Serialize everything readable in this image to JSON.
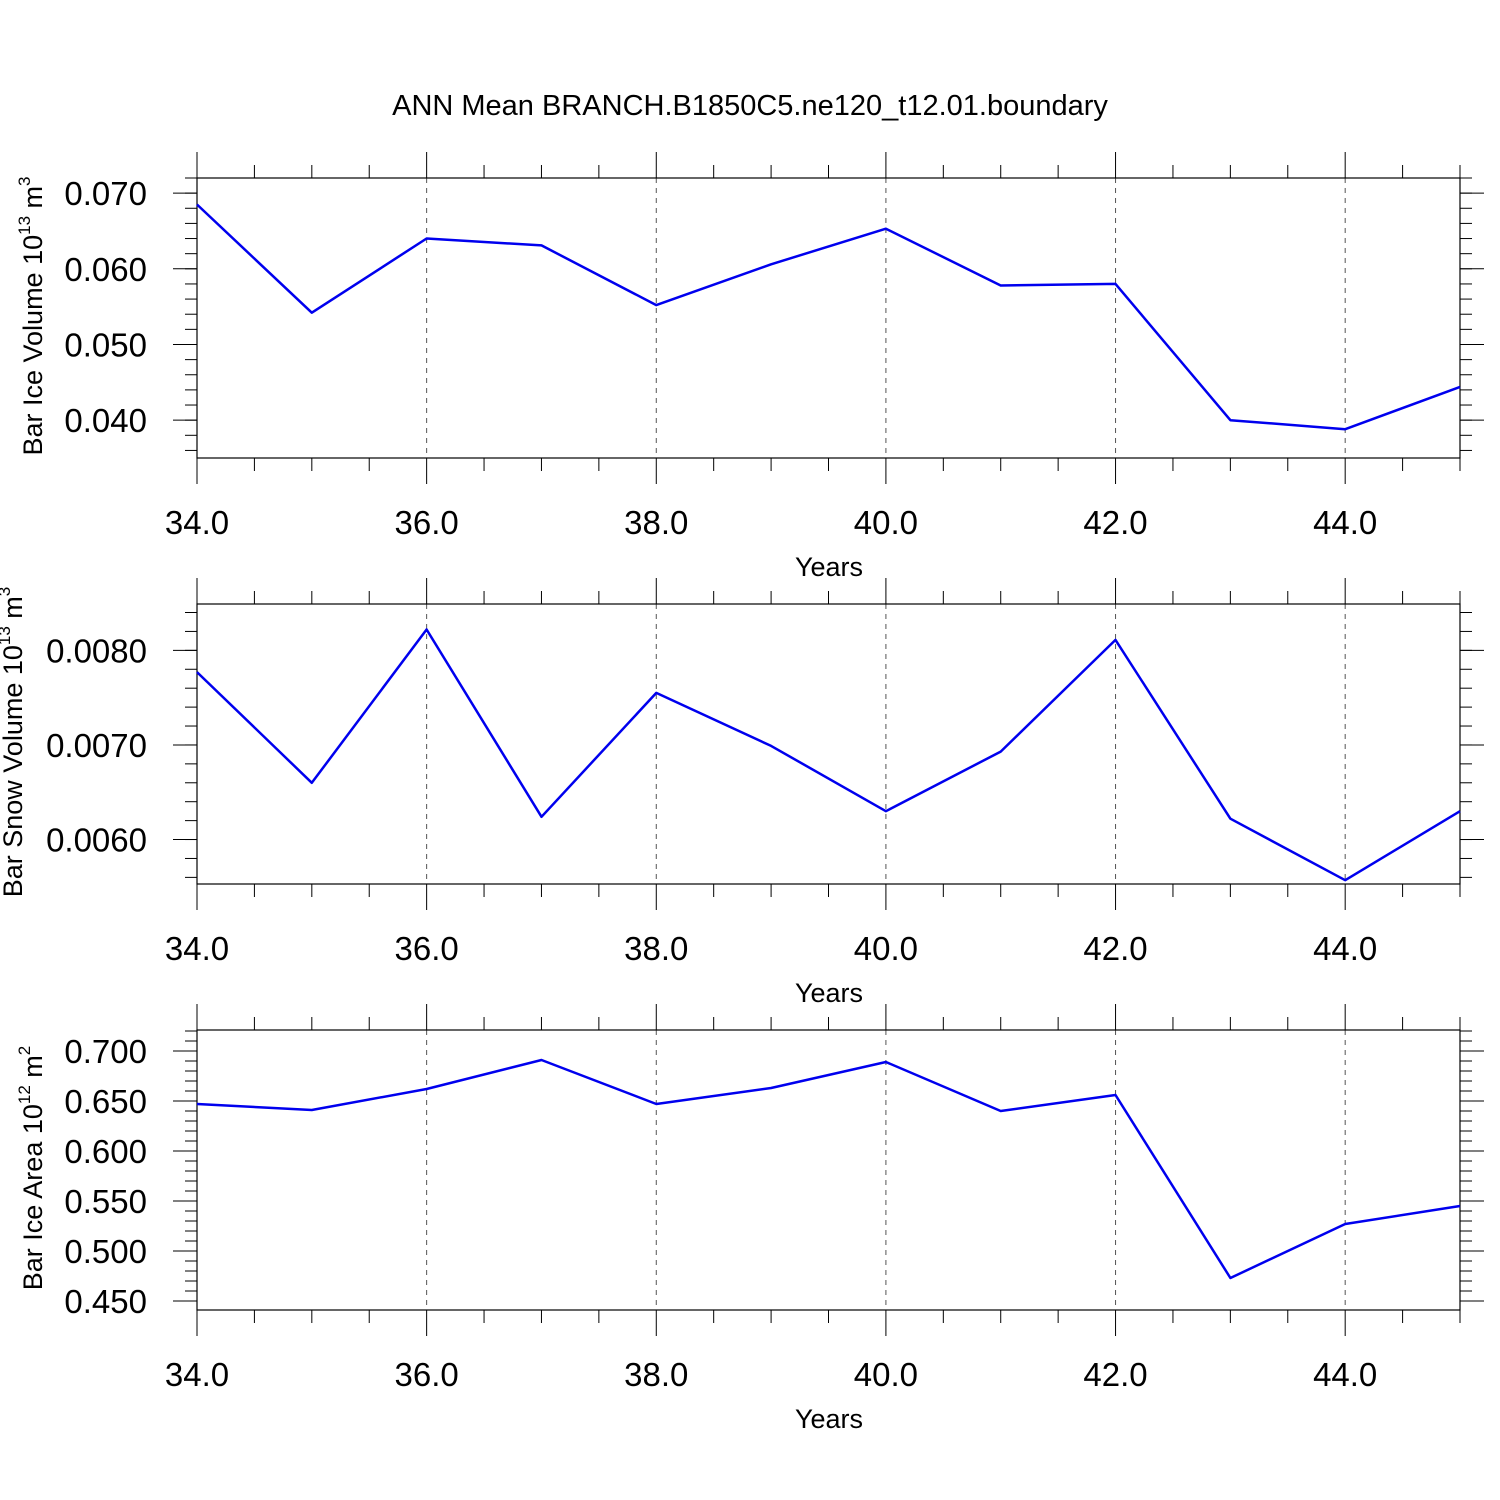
{
  "figure": {
    "title": "ANN Mean BRANCH.B1850C5.ne120_t12.01.boundary"
  },
  "colors": {
    "line": "#0000ee",
    "axis": "#000000",
    "grid": "#555555"
  },
  "chart_data": [
    {
      "type": "line",
      "ylabel": {
        "text": "Bar Ice Volume 10",
        "sup": "13",
        "unit": " m",
        "unitsup": "3"
      },
      "xlabel": "Years",
      "xlim": [
        34,
        45
      ],
      "ylim": [
        0.035,
        0.072
      ],
      "xticks": [
        34,
        36,
        38,
        40,
        42,
        44
      ],
      "xtick_labels": [
        "34.0",
        "36.0",
        "38.0",
        "40.0",
        "42.0",
        "44.0"
      ],
      "yticks": [
        0.04,
        0.05,
        0.06,
        0.07
      ],
      "ytick_labels": [
        "0.040",
        "0.050",
        "0.060",
        "0.070"
      ],
      "y_minor_step": 0.002,
      "grid": "vertical-dashed",
      "x": [
        34,
        35,
        36,
        37,
        38,
        39,
        40,
        41,
        42,
        43,
        44,
        45
      ],
      "series": [
        {
          "values": [
            0.0685,
            0.0542,
            0.064,
            0.0631,
            0.0552,
            0.0606,
            0.0653,
            0.0578,
            0.058,
            0.04,
            0.0388,
            0.0444
          ]
        }
      ]
    },
    {
      "type": "line",
      "ylabel": {
        "text": "Bar Snow Volume 10",
        "sup": "13",
        "unit": " m",
        "unitsup": "3"
      },
      "xlabel": "Years",
      "xlim": [
        34,
        45
      ],
      "ylim": [
        0.00553,
        0.00849
      ],
      "xticks": [
        34,
        36,
        38,
        40,
        42,
        44
      ],
      "xtick_labels": [
        "34.0",
        "36.0",
        "38.0",
        "40.0",
        "42.0",
        "44.0"
      ],
      "yticks": [
        0.006,
        0.007,
        0.008
      ],
      "ytick_labels": [
        "0.0060",
        "0.0070",
        "0.0080"
      ],
      "y_minor_step": 0.0002,
      "grid": "vertical-dashed",
      "x": [
        34,
        35,
        36,
        37,
        38,
        39,
        40,
        41,
        42,
        43,
        44,
        45
      ],
      "series": [
        {
          "values": [
            0.00777,
            0.0066,
            0.00822,
            0.00624,
            0.00755,
            0.00699,
            0.0063,
            0.00693,
            0.00811,
            0.00622,
            0.00557,
            0.0063
          ]
        }
      ]
    },
    {
      "type": "line",
      "ylabel": {
        "text": "Bar Ice Area 10",
        "sup": "12",
        "unit": " m",
        "unitsup": "2"
      },
      "xlabel": "Years",
      "xlim": [
        34,
        45
      ],
      "ylim": [
        0.441,
        0.721
      ],
      "xticks": [
        34,
        36,
        38,
        40,
        42,
        44
      ],
      "xtick_labels": [
        "34.0",
        "36.0",
        "38.0",
        "40.0",
        "42.0",
        "44.0"
      ],
      "yticks": [
        0.45,
        0.5,
        0.55,
        0.6,
        0.65,
        0.7
      ],
      "ytick_labels": [
        "0.450",
        "0.500",
        "0.550",
        "0.600",
        "0.650",
        "0.700"
      ],
      "y_minor_step": 0.01,
      "grid": "vertical-dashed",
      "x": [
        34,
        35,
        36,
        37,
        38,
        39,
        40,
        41,
        42,
        43,
        44,
        45
      ],
      "series": [
        {
          "values": [
            0.647,
            0.641,
            0.662,
            0.691,
            0.647,
            0.663,
            0.689,
            0.64,
            0.656,
            0.473,
            0.527,
            0.545
          ]
        }
      ]
    }
  ]
}
